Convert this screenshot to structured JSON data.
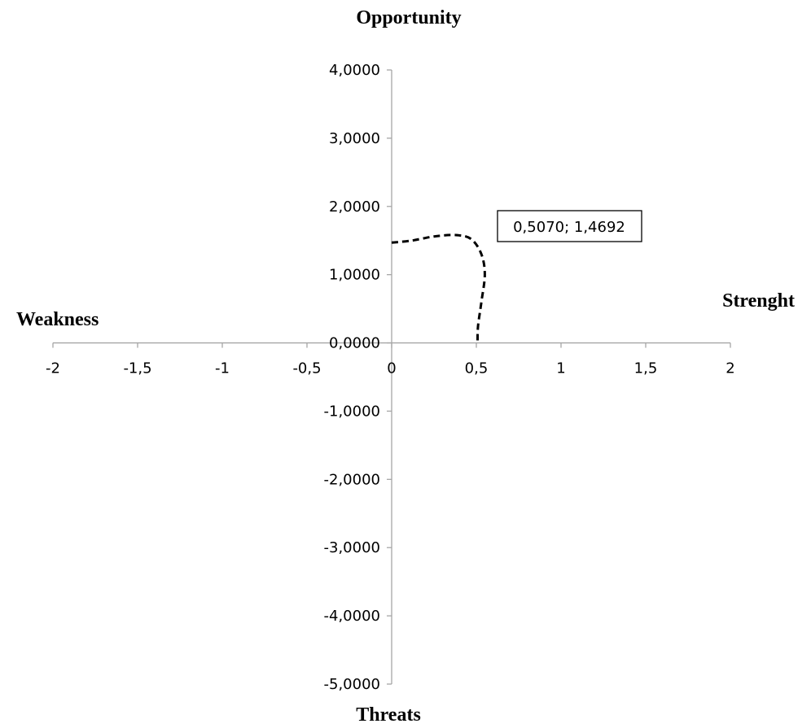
{
  "chart_data": {
    "type": "line",
    "quadrant_labels": {
      "top": "Opportunity",
      "bottom": "Threats",
      "left": "Weakness",
      "right": "Strenght"
    },
    "x_ticks": [
      "-2",
      "-1,5",
      "-1",
      "-0,5",
      "0",
      "0,5",
      "1",
      "1,5",
      "2"
    ],
    "x_tick_values": [
      -2,
      -1.5,
      -1,
      -0.5,
      0,
      0.5,
      1,
      1.5,
      2
    ],
    "y_ticks": [
      "4,0000",
      "3,0000",
      "2,0000",
      "1,0000",
      "0,0000",
      "-1,0000",
      "-2,0000",
      "-3,0000",
      "-4,0000",
      "-5,0000"
    ],
    "y_tick_values": [
      4,
      3,
      2,
      1,
      0,
      -1,
      -2,
      -3,
      -4,
      -5
    ],
    "xlim": [
      -2,
      2
    ],
    "ylim": [
      -5,
      4
    ],
    "series": [
      {
        "x": [
          0,
          0.12,
          0.25,
          0.38,
          0.47,
          0.53,
          0.55,
          0.53,
          0.51,
          0.507
        ],
        "y": [
          1.4692,
          1.5,
          1.56,
          1.58,
          1.52,
          1.3,
          1.0,
          0.6,
          0.25,
          0
        ],
        "style": "dashed",
        "color": "#000000"
      }
    ],
    "annotation": {
      "text": "0,5070; 1,4692"
    },
    "grid": false,
    "legend": "none"
  }
}
